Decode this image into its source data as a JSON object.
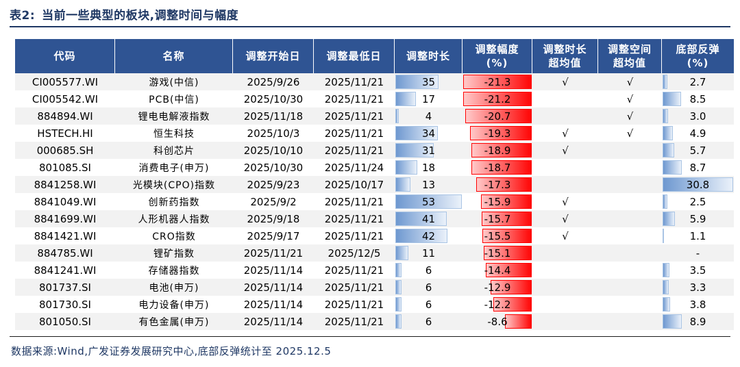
{
  "title": {
    "label": "表2:",
    "text": "当前一些典型的板块,调整时间与幅度"
  },
  "footer": {
    "text": "数据来源:Wind,广发证券发展研究中心,底部反弹统计至 2025.12.5"
  },
  "colors": {
    "header_bg": "#2F5493",
    "stripe": "#F2F2F2",
    "title": "#1F3864",
    "bar_blue_start": "#6E98D0",
    "bar_blue_border": "#A9C4E4",
    "bar_red_end": "#FF0505",
    "bar_red_border": "#FF0000"
  },
  "table": {
    "headers": [
      "代码",
      "名称",
      "调整开始日",
      "调整最低日",
      "调整时长",
      "调整幅度\n(%)",
      "调整时长\n超均值",
      "调整空间\n超均值",
      "底部反弹\n(%)"
    ],
    "scales": {
      "duration_max": 53,
      "magnitude_max": 21.3,
      "rebound_max": 30.8
    },
    "checkmark": "√",
    "rows": [
      {
        "code": "CI005577.WI",
        "name": "游戏(中信)",
        "start": "2025/9/26",
        "low": "2025/11/21",
        "duration": 35,
        "magnitude": -21.3,
        "over_duration": "√",
        "over_space": "√",
        "rebound": "2.7"
      },
      {
        "code": "CI005542.WI",
        "name": "PCB(中信)",
        "start": "2025/10/30",
        "low": "2025/11/21",
        "duration": 17,
        "magnitude": -21.2,
        "over_duration": "",
        "over_space": "√",
        "rebound": "8.5"
      },
      {
        "code": "884894.WI",
        "name": "锂电电解液指数",
        "start": "2025/11/18",
        "low": "2025/11/21",
        "duration": 4,
        "magnitude": -20.7,
        "over_duration": "",
        "over_space": "√",
        "rebound": "3.0"
      },
      {
        "code": "HSTECH.HI",
        "name": "恒生科技",
        "start": "2025/10/3",
        "low": "2025/11/21",
        "duration": 34,
        "magnitude": -19.3,
        "over_duration": "√",
        "over_space": "√",
        "rebound": "4.9"
      },
      {
        "code": "000685.SH",
        "name": "科创芯片",
        "start": "2025/10/10",
        "low": "2025/11/21",
        "duration": 31,
        "magnitude": -18.9,
        "over_duration": "√",
        "over_space": "",
        "rebound": "5.7"
      },
      {
        "code": "801085.SI",
        "name": "消费电子(申万)",
        "start": "2025/10/30",
        "low": "2025/11/24",
        "duration": 18,
        "magnitude": -18.7,
        "over_duration": "",
        "over_space": "",
        "rebound": "8.7"
      },
      {
        "code": "8841258.WI",
        "name": "光模块(CPO)指数",
        "start": "2025/9/23",
        "low": "2025/10/17",
        "duration": 13,
        "magnitude": -17.3,
        "over_duration": "",
        "over_space": "",
        "rebound": "30.8"
      },
      {
        "code": "8841049.WI",
        "name": "创新药指数",
        "start": "2025/9/2",
        "low": "2025/11/21",
        "duration": 53,
        "magnitude": -15.9,
        "over_duration": "√",
        "over_space": "",
        "rebound": "2.5"
      },
      {
        "code": "8841699.WI",
        "name": "人形机器人指数",
        "start": "2025/9/18",
        "low": "2025/11/21",
        "duration": 41,
        "magnitude": -15.7,
        "over_duration": "√",
        "over_space": "",
        "rebound": "5.9"
      },
      {
        "code": "8841421.WI",
        "name": "CRO指数",
        "start": "2025/9/17",
        "low": "2025/11/21",
        "duration": 42,
        "magnitude": -15.5,
        "over_duration": "√",
        "over_space": "",
        "rebound": "1.1"
      },
      {
        "code": "884785.WI",
        "name": "锂矿指数",
        "start": "2025/11/21",
        "low": "2025/12/5",
        "duration": 11,
        "magnitude": -15.1,
        "over_duration": "",
        "over_space": "",
        "rebound": "-"
      },
      {
        "code": "8841241.WI",
        "name": "存储器指数",
        "start": "2025/11/14",
        "low": "2025/11/21",
        "duration": 6,
        "magnitude": -14.4,
        "over_duration": "",
        "over_space": "",
        "rebound": "3.5"
      },
      {
        "code": "801737.SI",
        "name": "电池(申万)",
        "start": "2025/11/14",
        "low": "2025/11/21",
        "duration": 6,
        "magnitude": -12.9,
        "over_duration": "",
        "over_space": "",
        "rebound": "3.3"
      },
      {
        "code": "801730.SI",
        "name": "电力设备(申万)",
        "start": "2025/11/14",
        "low": "2025/11/21",
        "duration": 6,
        "magnitude": -12.2,
        "over_duration": "",
        "over_space": "",
        "rebound": "3.8"
      },
      {
        "code": "801050.SI",
        "name": "有色金属(申万)",
        "start": "2025/11/14",
        "low": "2025/11/21",
        "duration": 6,
        "magnitude": -8.6,
        "over_duration": "",
        "over_space": "",
        "rebound": "8.9"
      }
    ]
  },
  "chart_data": {
    "type": "table",
    "title": "表2: 当前一些典型的板块,调整时间与幅度",
    "columns": [
      "代码",
      "名称",
      "调整开始日",
      "调整最低日",
      "调整时长",
      "调整幅度(%)",
      "调整时长超均值",
      "调整空间超均值",
      "底部反弹(%)"
    ],
    "rows": [
      [
        "CI005577.WI",
        "游戏(中信)",
        "2025/9/26",
        "2025/11/21",
        35,
        -21.3,
        "√",
        "√",
        2.7
      ],
      [
        "CI005542.WI",
        "PCB(中信)",
        "2025/10/30",
        "2025/11/21",
        17,
        -21.2,
        "",
        "√",
        8.5
      ],
      [
        "884894.WI",
        "锂电电解液指数",
        "2025/11/18",
        "2025/11/21",
        4,
        -20.7,
        "",
        "√",
        3.0
      ],
      [
        "HSTECH.HI",
        "恒生科技",
        "2025/10/3",
        "2025/11/21",
        34,
        -19.3,
        "√",
        "√",
        4.9
      ],
      [
        "000685.SH",
        "科创芯片",
        "2025/10/10",
        "2025/11/21",
        31,
        -18.9,
        "√",
        "",
        5.7
      ],
      [
        "801085.SI",
        "消费电子(申万)",
        "2025/10/30",
        "2025/11/24",
        18,
        -18.7,
        "",
        "",
        8.7
      ],
      [
        "8841258.WI",
        "光模块(CPO)指数",
        "2025/9/23",
        "2025/10/17",
        13,
        -17.3,
        "",
        "",
        30.8
      ],
      [
        "8841049.WI",
        "创新药指数",
        "2025/9/2",
        "2025/11/21",
        53,
        -15.9,
        "√",
        "",
        2.5
      ],
      [
        "8841699.WI",
        "人形机器人指数",
        "2025/9/18",
        "2025/11/21",
        41,
        -15.7,
        "√",
        "",
        5.9
      ],
      [
        "8841421.WI",
        "CRO指数",
        "2025/9/17",
        "2025/11/21",
        42,
        -15.5,
        "√",
        "",
        1.1
      ],
      [
        "884785.WI",
        "锂矿指数",
        "2025/11/21",
        "2025/12/5",
        11,
        -15.1,
        "",
        "",
        null
      ],
      [
        "8841241.WI",
        "存储器指数",
        "2025/11/14",
        "2025/11/21",
        6,
        -14.4,
        "",
        "",
        3.5
      ],
      [
        "801737.SI",
        "电池(申万)",
        "2025/11/14",
        "2025/11/21",
        6,
        -12.9,
        "",
        "",
        3.3
      ],
      [
        "801730.SI",
        "电力设备(申万)",
        "2025/11/14",
        "2025/11/21",
        6,
        -12.2,
        "",
        "",
        3.8
      ],
      [
        "801050.SI",
        "有色金属(申万)",
        "2025/11/14",
        "2025/11/21",
        6,
        -8.6,
        "",
        "",
        8.9
      ]
    ]
  }
}
